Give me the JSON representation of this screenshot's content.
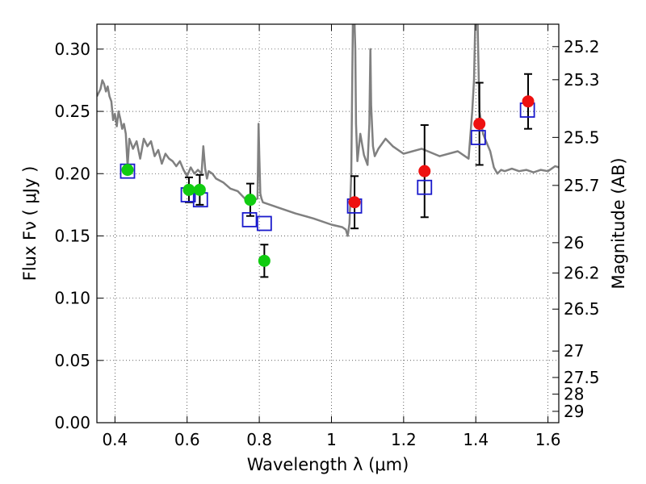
{
  "chart_data": {
    "type": "scatter",
    "title": "",
    "xlabel": "Wavelength  λ (μm)",
    "ylabel": "Flux  Fν  ( μJy )",
    "ylabel_right": "Magnitude (AB)",
    "xlim": [
      0.35,
      1.63
    ],
    "ylim": [
      0.0,
      0.32
    ],
    "grid": true,
    "x_ticks": [
      0.4,
      0.6,
      0.8,
      1.0,
      1.2,
      1.4,
      1.6
    ],
    "x_tick_labels": [
      "0.4",
      "0.6",
      "0.8",
      "1",
      "1.2",
      "1.4",
      "1.6"
    ],
    "y_ticks": [
      0.0,
      0.05,
      0.1,
      0.15,
      0.2,
      0.25,
      0.3
    ],
    "y_tick_labels": [
      "0.00",
      "0.05",
      "0.10",
      "0.15",
      "0.20",
      "0.25",
      "0.30"
    ],
    "magnitude_ticks": [
      {
        "mag": 25.2,
        "label": "25.2"
      },
      {
        "mag": 25.3,
        "label": "25.3"
      },
      {
        "mag": 25.5,
        "label": "25.5"
      },
      {
        "mag": 25.7,
        "label": "25.7"
      },
      {
        "mag": 26.0,
        "label": "26"
      },
      {
        "mag": 26.2,
        "label": "26.2"
      },
      {
        "mag": 26.5,
        "label": "26.5"
      },
      {
        "mag": 27.0,
        "label": "27"
      },
      {
        "mag": 27.5,
        "label": "27.5"
      },
      {
        "mag": 28.0,
        "label": "28"
      },
      {
        "mag": 29.0,
        "label": "29"
      }
    ],
    "colors": {
      "model": "#808080",
      "optical": "#11cc11",
      "nir": "#ee1111",
      "predicted": "#1a1acc",
      "errorbar": "#000000",
      "grid": "#000000"
    },
    "model_spectrum": {
      "x": [
        0.35,
        0.36,
        0.365,
        0.37,
        0.375,
        0.38,
        0.385,
        0.39,
        0.395,
        0.4,
        0.405,
        0.41,
        0.415,
        0.42,
        0.425,
        0.43,
        0.435,
        0.44,
        0.445,
        0.45,
        0.46,
        0.47,
        0.48,
        0.49,
        0.5,
        0.51,
        0.52,
        0.53,
        0.54,
        0.55,
        0.56,
        0.57,
        0.58,
        0.59,
        0.6,
        0.61,
        0.62,
        0.63,
        0.64,
        0.645,
        0.65,
        0.655,
        0.66,
        0.67,
        0.68,
        0.7,
        0.72,
        0.74,
        0.76,
        0.78,
        0.795,
        0.798,
        0.8,
        0.803,
        0.806,
        0.81,
        0.85,
        0.9,
        0.95,
        1.0,
        1.03,
        1.04,
        1.045,
        1.05,
        1.055,
        1.06,
        1.064,
        1.066,
        1.068,
        1.072,
        1.08,
        1.09,
        1.1,
        1.105,
        1.108,
        1.11,
        1.115,
        1.12,
        1.13,
        1.15,
        1.17,
        1.2,
        1.25,
        1.3,
        1.35,
        1.38,
        1.39,
        1.395,
        1.4,
        1.405,
        1.41,
        1.42,
        1.43,
        1.44,
        1.45,
        1.46,
        1.47,
        1.48,
        1.5,
        1.52,
        1.54,
        1.56,
        1.58,
        1.6,
        1.62,
        1.63
      ],
      "y": [
        0.262,
        0.268,
        0.275,
        0.272,
        0.266,
        0.27,
        0.262,
        0.258,
        0.243,
        0.248,
        0.238,
        0.25,
        0.244,
        0.236,
        0.24,
        0.232,
        0.206,
        0.228,
        0.224,
        0.22,
        0.226,
        0.212,
        0.228,
        0.222,
        0.226,
        0.214,
        0.219,
        0.208,
        0.216,
        0.212,
        0.21,
        0.206,
        0.21,
        0.203,
        0.198,
        0.205,
        0.2,
        0.203,
        0.2,
        0.222,
        0.204,
        0.196,
        0.202,
        0.2,
        0.196,
        0.193,
        0.188,
        0.186,
        0.18,
        0.178,
        0.18,
        0.24,
        0.215,
        0.184,
        0.18,
        0.177,
        0.173,
        0.168,
        0.164,
        0.159,
        0.157,
        0.155,
        0.15,
        0.16,
        0.2,
        0.34,
        0.32,
        0.3,
        0.24,
        0.21,
        0.232,
        0.215,
        0.207,
        0.24,
        0.3,
        0.255,
        0.222,
        0.214,
        0.22,
        0.228,
        0.222,
        0.216,
        0.22,
        0.214,
        0.218,
        0.212,
        0.25,
        0.275,
        0.34,
        0.32,
        0.25,
        0.232,
        0.225,
        0.218,
        0.205,
        0.2,
        0.203,
        0.202,
        0.204,
        0.202,
        0.203,
        0.201,
        0.203,
        0.202,
        0.206,
        0.205
      ]
    },
    "series": [
      {
        "marker": "circle",
        "color_key": "optical",
        "points": [
          {
            "x": 0.435,
            "y": 0.203,
            "err": null
          },
          {
            "x": 0.605,
            "y": 0.187,
            "err": 0.01
          },
          {
            "x": 0.635,
            "y": 0.187,
            "err": 0.012
          },
          {
            "x": 0.775,
            "y": 0.179,
            "err": 0.013
          },
          {
            "x": 0.814,
            "y": 0.13,
            "err": 0.013
          }
        ]
      },
      {
        "marker": "circle",
        "color_key": "nir",
        "points": [
          {
            "x": 1.064,
            "y": 0.177,
            "err": 0.021
          },
          {
            "x": 1.258,
            "y": 0.202,
            "err": 0.037
          },
          {
            "x": 1.41,
            "y": 0.24,
            "err": 0.033
          },
          {
            "x": 1.545,
            "y": 0.258,
            "err": 0.022
          }
        ]
      },
      {
        "marker": "open-square",
        "color_key": "predicted",
        "points": [
          {
            "x": 0.435,
            "y": 0.202
          },
          {
            "x": 0.603,
            "y": 0.183
          },
          {
            "x": 0.637,
            "y": 0.179
          },
          {
            "x": 0.773,
            "y": 0.163
          },
          {
            "x": 0.814,
            "y": 0.16
          },
          {
            "x": 1.064,
            "y": 0.174
          },
          {
            "x": 1.258,
            "y": 0.189
          },
          {
            "x": 1.407,
            "y": 0.229
          },
          {
            "x": 1.543,
            "y": 0.251
          }
        ]
      }
    ]
  }
}
